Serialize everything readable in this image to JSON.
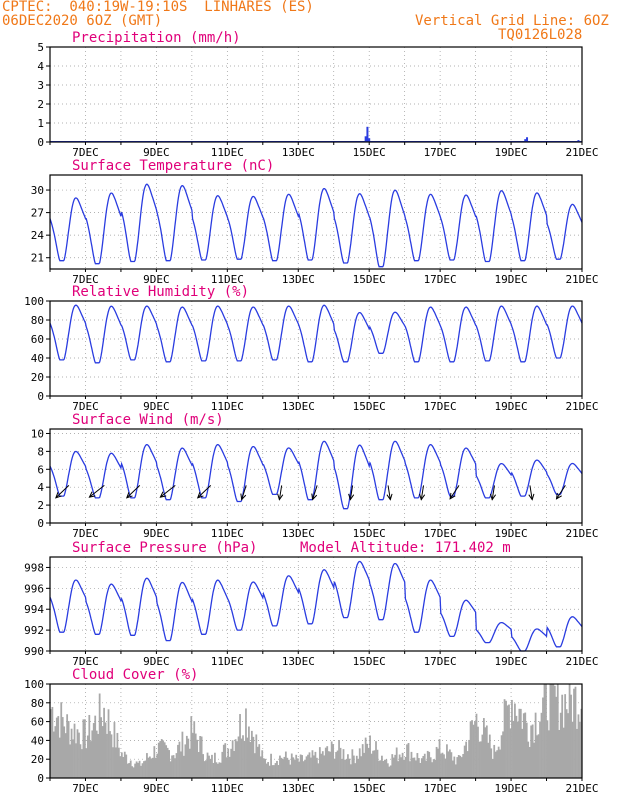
{
  "header": {
    "line1": "CPTEC:  040:19W-19:10S  LINHARES (ES)",
    "line2": "06DEC2020 6OZ (GMT)",
    "grid_note": "Vertical Grid Line: 6OZ",
    "code": "TQ0126L028"
  },
  "colors": {
    "header": "#f07818",
    "title": "#e0007a",
    "line": "#2a3ce0",
    "bars": "#a8a8a8",
    "arrow": "#000000",
    "grid": "#999999"
  },
  "chart_data": [
    {
      "type": "bar",
      "title": "Precipitation (mm/h)",
      "x_range_days": [
        6,
        21
      ],
      "x_ticks": [
        "7DEC",
        "9DEC",
        "11DEC",
        "13DEC",
        "15DEC",
        "17DEC",
        "19DEC",
        "21DEC"
      ],
      "ylim": [
        0,
        5
      ],
      "y_ticks": [
        0,
        1,
        2,
        3,
        4,
        5
      ],
      "grid": true,
      "x": [
        14.9,
        14.95,
        15.0,
        19.4,
        19.45,
        20.9
      ],
      "values": [
        0.3,
        0.8,
        0.2,
        0.15,
        0.25,
        0.1
      ]
    },
    {
      "type": "line",
      "title": "Surface Temperature (nC)",
      "x_range_days": [
        6,
        21
      ],
      "x_ticks": [
        "7DEC",
        "9DEC",
        "11DEC",
        "13DEC",
        "15DEC",
        "17DEC",
        "19DEC",
        "21DEC"
      ],
      "ylim": [
        19.5,
        32
      ],
      "y_ticks": [
        21,
        24,
        27,
        30
      ],
      "grid": true,
      "min_values": [
        20.6,
        20.2,
        20.5,
        20.6,
        20.7,
        20.8,
        20.6,
        20.7,
        20.3,
        19.8,
        20.6,
        20.7,
        20.5,
        20.6,
        20.8
      ],
      "max_values": [
        29.3,
        30.0,
        31.2,
        31.0,
        29.6,
        29.5,
        29.8,
        30.6,
        29.9,
        30.4,
        29.8,
        29.7,
        30.3,
        30.0,
        28.4
      ]
    },
    {
      "type": "line",
      "title": "Relative Humidity (%)",
      "x_range_days": [
        6,
        21
      ],
      "x_ticks": [
        "7DEC",
        "9DEC",
        "11DEC",
        "13DEC",
        "15DEC",
        "17DEC",
        "19DEC",
        "21DEC"
      ],
      "ylim": [
        0,
        100
      ],
      "y_ticks": [
        0,
        20,
        40,
        60,
        80,
        100
      ],
      "grid": true,
      "min_values": [
        38,
        35,
        38,
        36,
        37,
        37,
        38,
        36,
        36,
        45,
        36,
        36,
        37,
        36,
        40
      ],
      "max_values": [
        98,
        97,
        97,
        96,
        97,
        96,
        97,
        98,
        90,
        90,
        96,
        96,
        97,
        97,
        97
      ]
    },
    {
      "type": "line",
      "title": "Surface Wind (m/s)",
      "x_range_days": [
        6,
        21
      ],
      "x_ticks": [
        "7DEC",
        "9DEC",
        "11DEC",
        "13DEC",
        "15DEC",
        "17DEC",
        "19DEC",
        "21DEC"
      ],
      "ylim": [
        0,
        10.5
      ],
      "y_ticks": [
        0,
        2,
        4,
        6,
        8,
        10
      ],
      "grid": true,
      "min_values": [
        3.0,
        2.8,
        2.8,
        2.6,
        2.8,
        2.4,
        3.2,
        2.6,
        1.6,
        2.6,
        2.8,
        3.0,
        2.8,
        3.0,
        3.2
      ],
      "max_values": [
        8.2,
        8.0,
        9.0,
        8.6,
        9.0,
        8.8,
        8.6,
        9.4,
        9.0,
        9.4,
        9.0,
        8.6,
        6.8,
        7.2,
        6.8
      ],
      "arrow_days": [
        6.25,
        7.25,
        8.25,
        9.25,
        10.25,
        11.25,
        12.25,
        13.25,
        14.25,
        15.25,
        16.25,
        17.25,
        18.25,
        19.25,
        20.25
      ],
      "arrow_direction_deg": [
        60,
        55,
        60,
        55,
        60,
        80,
        85,
        80,
        85,
        95,
        85,
        70,
        85,
        95,
        70
      ]
    },
    {
      "type": "line",
      "title": "Surface Pressure (hPa)",
      "annotation": "Model Altitude: 171.402 m",
      "x_range_days": [
        6,
        21
      ],
      "x_ticks": [
        "7DEC",
        "9DEC",
        "11DEC",
        "13DEC",
        "15DEC",
        "17DEC",
        "19DEC",
        "21DEC"
      ],
      "ylim": [
        990,
        999
      ],
      "y_ticks": [
        990,
        992,
        994,
        996,
        998
      ],
      "grid": true,
      "min_values": [
        991.8,
        991.6,
        991.5,
        991.0,
        991.6,
        992.0,
        992.4,
        992.6,
        993.2,
        993.0,
        991.8,
        991.4,
        990.8,
        990.0,
        990.4
      ],
      "max_values": [
        997.0,
        996.6,
        997.2,
        996.8,
        997.0,
        996.8,
        997.4,
        998.0,
        998.8,
        998.6,
        997.0,
        995.0,
        992.8,
        992.2,
        993.4
      ]
    },
    {
      "type": "bar",
      "title": "Cloud Cover (%)",
      "x_range_days": [
        6,
        21
      ],
      "x_ticks": [
        "7DEC",
        "9DEC",
        "11DEC",
        "13DEC",
        "15DEC",
        "17DEC",
        "19DEC",
        "21DEC"
      ],
      "ylim": [
        0,
        100
      ],
      "y_ticks": [
        0,
        20,
        40,
        60,
        80,
        100
      ],
      "grid": true,
      "x": [
        6.0,
        6.5,
        7.0,
        7.5,
        8.0,
        8.5,
        9.0,
        9.5,
        10.0,
        10.5,
        11.0,
        11.5,
        12.0,
        12.5,
        13.0,
        13.5,
        14.0,
        14.5,
        15.0,
        15.5,
        16.0,
        16.5,
        17.0,
        17.5,
        18.0,
        18.5,
        19.0,
        19.5,
        20.0,
        20.5,
        21.0
      ],
      "values": [
        82,
        60,
        50,
        80,
        28,
        15,
        35,
        30,
        55,
        20,
        35,
        75,
        20,
        25,
        20,
        25,
        35,
        25,
        40,
        20,
        35,
        20,
        35,
        20,
        70,
        30,
        95,
        60,
        92,
        90,
        95
      ]
    }
  ]
}
